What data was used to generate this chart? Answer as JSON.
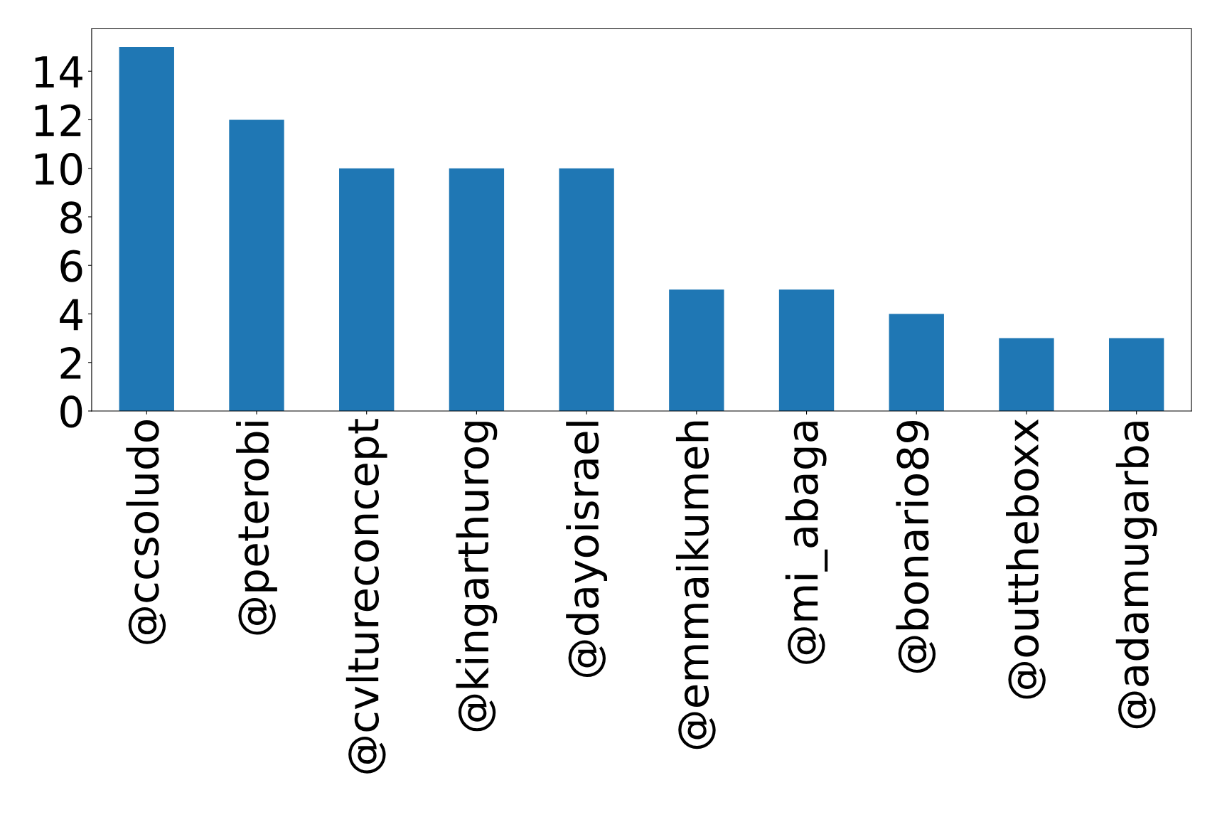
{
  "chart_data": {
    "type": "bar",
    "categories": [
      "@ccsoludo",
      "@peterobi",
      "@cvltureconcept",
      "@kingarthurog",
      "@dayoisrael",
      "@emmaikumeh",
      "@mi_abaga",
      "@bonario89",
      "@outtheboxx",
      "@adamugarba"
    ],
    "values": [
      15,
      12,
      10,
      10,
      10,
      5,
      5,
      4,
      3,
      3
    ],
    "color": "#1f77b4",
    "ylim": [
      0,
      15.75
    ],
    "yticks": [
      0,
      2,
      4,
      6,
      8,
      10,
      12,
      14
    ],
    "grid": false
  }
}
